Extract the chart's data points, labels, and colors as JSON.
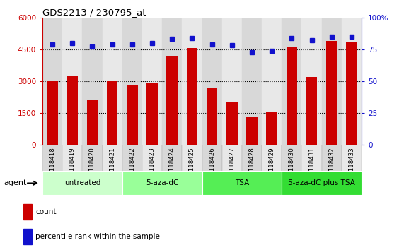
{
  "title": "GDS2213 / 230795_at",
  "samples": [
    "GSM118418",
    "GSM118419",
    "GSM118420",
    "GSM118421",
    "GSM118422",
    "GSM118423",
    "GSM118424",
    "GSM118425",
    "GSM118426",
    "GSM118427",
    "GSM118428",
    "GSM118429",
    "GSM118430",
    "GSM118431",
    "GSM118432",
    "GSM118433"
  ],
  "counts": [
    3050,
    3250,
    2150,
    3050,
    2800,
    2900,
    4200,
    4550,
    2700,
    2050,
    1300,
    1550,
    4600,
    3200,
    4900,
    4850
  ],
  "percentile_ranks": [
    79,
    80,
    77,
    79,
    79,
    80,
    83,
    84,
    79,
    78,
    73,
    74,
    84,
    82,
    85,
    85
  ],
  "bar_color": "#cc0000",
  "dot_color": "#1111cc",
  "groups": [
    {
      "label": "untreated",
      "start": 0,
      "end": 3,
      "color": "#ccffcc"
    },
    {
      "label": "5-aza-dC",
      "start": 4,
      "end": 7,
      "color": "#99ff99"
    },
    {
      "label": "TSA",
      "start": 8,
      "end": 11,
      "color": "#55ee55"
    },
    {
      "label": "5-aza-dC plus TSA",
      "start": 12,
      "end": 15,
      "color": "#33dd33"
    }
  ],
  "ylim_left": [
    0,
    6000
  ],
  "ylim_right": [
    0,
    100
  ],
  "yticks_left": [
    0,
    1500,
    3000,
    4500,
    6000
  ],
  "yticks_right": [
    0,
    25,
    50,
    75,
    100
  ],
  "bg_color": "#ffffff",
  "agent_label": "agent",
  "legend_count_label": "count",
  "legend_pct_label": "percentile rank within the sample",
  "col_bg_even": "#d8d8d8",
  "col_bg_odd": "#e8e8e8"
}
